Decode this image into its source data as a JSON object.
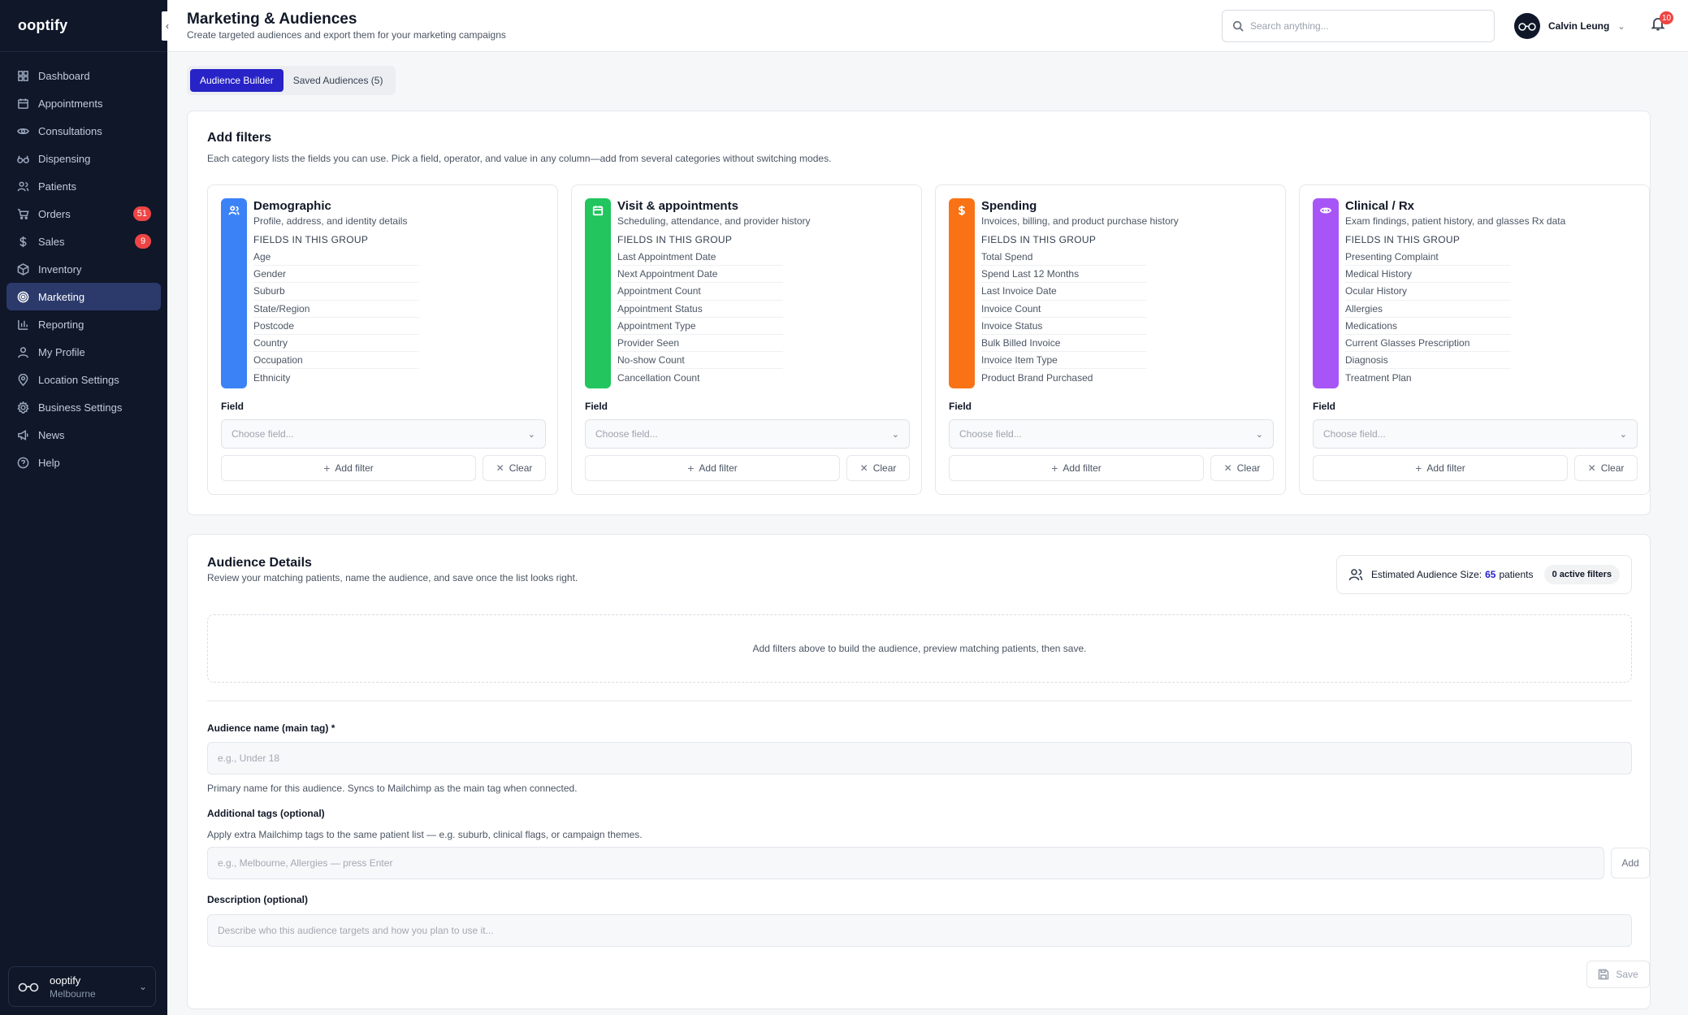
{
  "brand": "ooptify",
  "sidebar": {
    "items": [
      {
        "label": "Dashboard",
        "icon": "grid-icon"
      },
      {
        "label": "Appointments",
        "icon": "calendar-icon"
      },
      {
        "label": "Consultations",
        "icon": "eye-icon"
      },
      {
        "label": "Dispensing",
        "icon": "glasses-icon"
      },
      {
        "label": "Patients",
        "icon": "users-icon"
      },
      {
        "label": "Orders",
        "icon": "cart-icon",
        "badge": "51"
      },
      {
        "label": "Sales",
        "icon": "dollar-icon",
        "badge": "9"
      },
      {
        "label": "Inventory",
        "icon": "box-icon"
      },
      {
        "label": "Marketing",
        "icon": "target-icon",
        "active": true
      },
      {
        "label": "Reporting",
        "icon": "bar-chart-icon"
      },
      {
        "label": "My Profile",
        "icon": "user-icon"
      },
      {
        "label": "Location Settings",
        "icon": "pin-icon"
      },
      {
        "label": "Business Settings",
        "icon": "gear-icon"
      },
      {
        "label": "News",
        "icon": "megaphone-icon"
      },
      {
        "label": "Help",
        "icon": "help-icon"
      }
    ],
    "org": {
      "name": "ooptify",
      "location": "Melbourne"
    }
  },
  "header": {
    "title": "Marketing & Audiences",
    "subtitle": "Create targeted audiences and export them for your marketing campaigns",
    "search_placeholder": "Search anything...",
    "user_name": "Calvin Leung",
    "notification_count": "10"
  },
  "tabs": [
    {
      "label": "Audience Builder",
      "active": true
    },
    {
      "label": "Saved Audiences (5)",
      "active": false
    }
  ],
  "filters": {
    "title": "Add filters",
    "description": "Each category lists the fields you can use. Pick a field, operator, and value in any column—add from several categories without switching modes.",
    "groups": [
      {
        "title": "Demographic",
        "description": "Profile, address, and identity details",
        "color": "#3b82f6",
        "icon": "users-icon",
        "fields_label": "FIELDS IN THIS GROUP",
        "fields": [
          "Age",
          "Gender",
          "Suburb",
          "State/Region",
          "Postcode",
          "Country",
          "Occupation",
          "Ethnicity"
        ],
        "field_label": "Field",
        "select_placeholder": "Choose field...",
        "add_label": "Add filter",
        "clear_label": "Clear"
      },
      {
        "title": "Visit & appointments",
        "description": "Scheduling, attendance, and provider history",
        "color": "#22c55e",
        "icon": "calendar-icon",
        "fields_label": "FIELDS IN THIS GROUP",
        "fields": [
          "Last Appointment Date",
          "Next Appointment Date",
          "Appointment Count",
          "Appointment Status",
          "Appointment Type",
          "Provider Seen",
          "No-show Count",
          "Cancellation Count"
        ],
        "field_label": "Field",
        "select_placeholder": "Choose field...",
        "add_label": "Add filter",
        "clear_label": "Clear"
      },
      {
        "title": "Spending",
        "description": "Invoices, billing, and product purchase history",
        "color": "#f97316",
        "icon": "dollar-icon",
        "fields_label": "FIELDS IN THIS GROUP",
        "fields": [
          "Total Spend",
          "Spend Last 12 Months",
          "Last Invoice Date",
          "Invoice Count",
          "Invoice Status",
          "Bulk Billed Invoice",
          "Invoice Item Type",
          "Product Brand Purchased"
        ],
        "field_label": "Field",
        "select_placeholder": "Choose field...",
        "add_label": "Add filter",
        "clear_label": "Clear"
      },
      {
        "title": "Clinical / Rx",
        "description": "Exam findings, patient history, and glasses Rx data",
        "color": "#a855f7",
        "icon": "eye-icon",
        "fields_label": "FIELDS IN THIS GROUP",
        "fields": [
          "Presenting Complaint",
          "Medical History",
          "Ocular History",
          "Allergies",
          "Medications",
          "Current Glasses Prescription",
          "Diagnosis",
          "Treatment Plan"
        ],
        "field_label": "Field",
        "select_placeholder": "Choose field...",
        "add_label": "Add filter",
        "clear_label": "Clear"
      }
    ]
  },
  "details": {
    "title": "Audience Details",
    "description": "Review your matching patients, name the audience, and save once the list looks right.",
    "estimate_label": "Estimated Audience Size:",
    "estimate_count": "65",
    "estimate_unit": "patients",
    "active_filters": "0 active filters",
    "empty_message": "Add filters above to build the audience, preview matching patients, then save.",
    "name_label": "Audience name (main tag) *",
    "name_placeholder": "e.g., Under 18",
    "name_help": "Primary name for this audience. Syncs to Mailchimp as the main tag when connected.",
    "tags_label": "Additional tags (optional)",
    "tags_help": "Apply extra Mailchimp tags to the same patient list — e.g. suburb, clinical flags, or campaign themes.",
    "tags_placeholder": "e.g., Melbourne, Allergies — press Enter",
    "tags_add_label": "Add",
    "desc_label": "Description (optional)",
    "desc_placeholder": "Describe who this audience targets and how you plan to use it...",
    "save_label": "Save"
  }
}
